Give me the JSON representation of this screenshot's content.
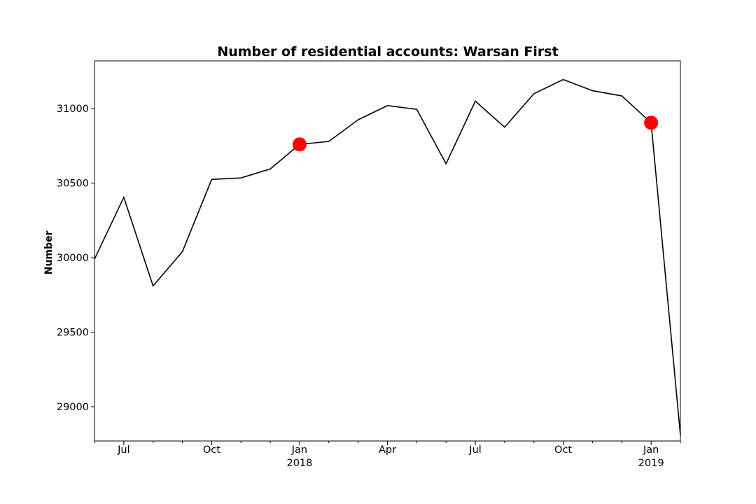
{
  "chart_data": {
    "type": "line",
    "title": "Number of residential accounts: Warsan First",
    "xlabel": "",
    "ylabel": "Number",
    "x": [
      "2017-06",
      "2017-07",
      "2017-08",
      "2017-09",
      "2017-10",
      "2017-11",
      "2017-12",
      "2018-01",
      "2018-02",
      "2018-03",
      "2018-04",
      "2018-05",
      "2018-06",
      "2018-07",
      "2018-08",
      "2018-09",
      "2018-10",
      "2018-11",
      "2018-12",
      "2019-01",
      "2019-02"
    ],
    "series": [
      {
        "values": [
          29990,
          30405,
          29810,
          30040,
          30525,
          30535,
          30595,
          30760,
          30780,
          30925,
          31020,
          30995,
          30630,
          31050,
          30875,
          31100,
          31195,
          31120,
          31085,
          30905,
          28810
        ],
        "color": "#000000"
      }
    ],
    "highlight_points": [
      {
        "x": "2018-01",
        "value": 30760,
        "color": "#ff0000"
      },
      {
        "x": "2019-01",
        "value": 30905,
        "color": "#ff0000"
      }
    ],
    "xlim": [
      "2017-06",
      "2019-02"
    ],
    "ylim": [
      28770,
      31320
    ],
    "y_ticks": [
      29000,
      29500,
      30000,
      30500,
      31000
    ],
    "y_tick_labels": [
      "29000",
      "29500",
      "30000",
      "30500",
      "31000"
    ],
    "x_ticks": [
      {
        "x": "2017-07",
        "label": "Jul",
        "sublabel": ""
      },
      {
        "x": "2017-10",
        "label": "Oct",
        "sublabel": ""
      },
      {
        "x": "2018-01",
        "label": "Jan",
        "sublabel": "2018"
      },
      {
        "x": "2018-04",
        "label": "Apr",
        "sublabel": ""
      },
      {
        "x": "2018-07",
        "label": "Jul",
        "sublabel": ""
      },
      {
        "x": "2018-10",
        "label": "Oct",
        "sublabel": ""
      },
      {
        "x": "2019-01",
        "label": "Jan",
        "sublabel": "2019"
      }
    ],
    "grid": false,
    "legend": "none"
  }
}
